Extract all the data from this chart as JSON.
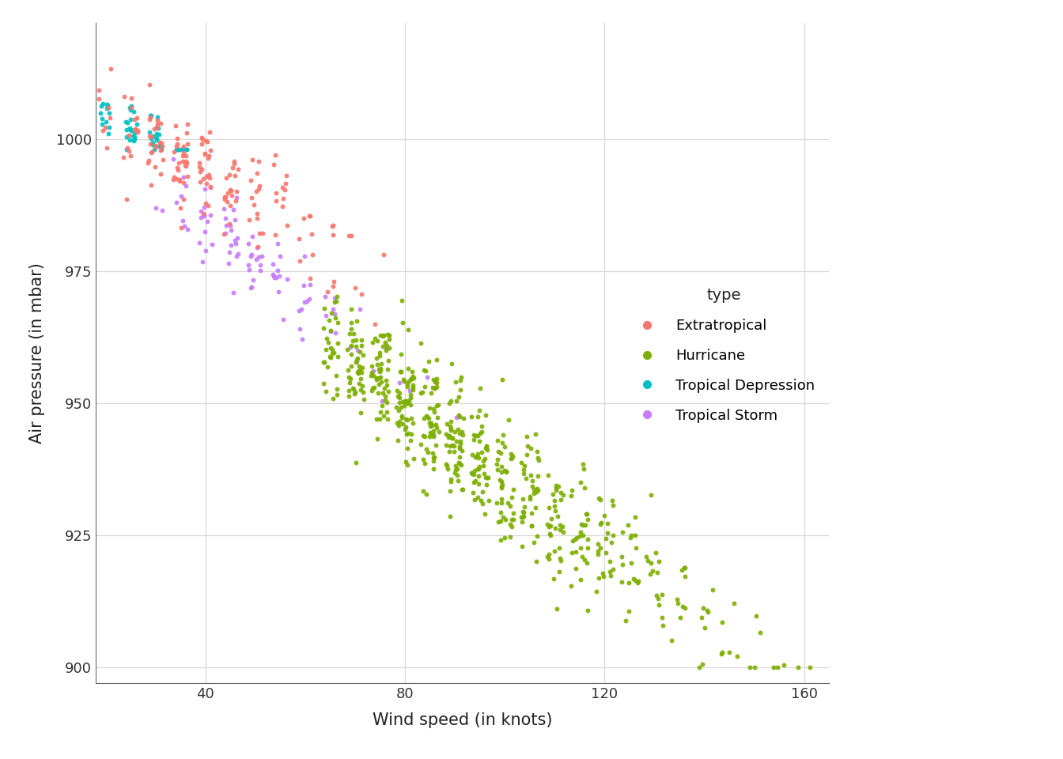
{
  "title": "",
  "xlabel": "Wind speed (in knots)",
  "ylabel": "Air pressure (in mbar)",
  "xlim": [
    18,
    165
  ],
  "ylim": [
    897,
    1022
  ],
  "xticks": [
    40,
    80,
    120,
    160
  ],
  "yticks": [
    900,
    925,
    950,
    975,
    1000
  ],
  "background_color": "#ffffff",
  "panel_color": "#ffffff",
  "grid_color": "#d9d9d9",
  "legend_title": "type",
  "colors": {
    "Extratropical": "#F8766D",
    "Hurricane": "#7CAE00",
    "Tropical Depression": "#00BFC4",
    "Tropical Storm": "#C77CFF"
  },
  "point_size": 18,
  "alpha": 0.9,
  "seed": 99
}
